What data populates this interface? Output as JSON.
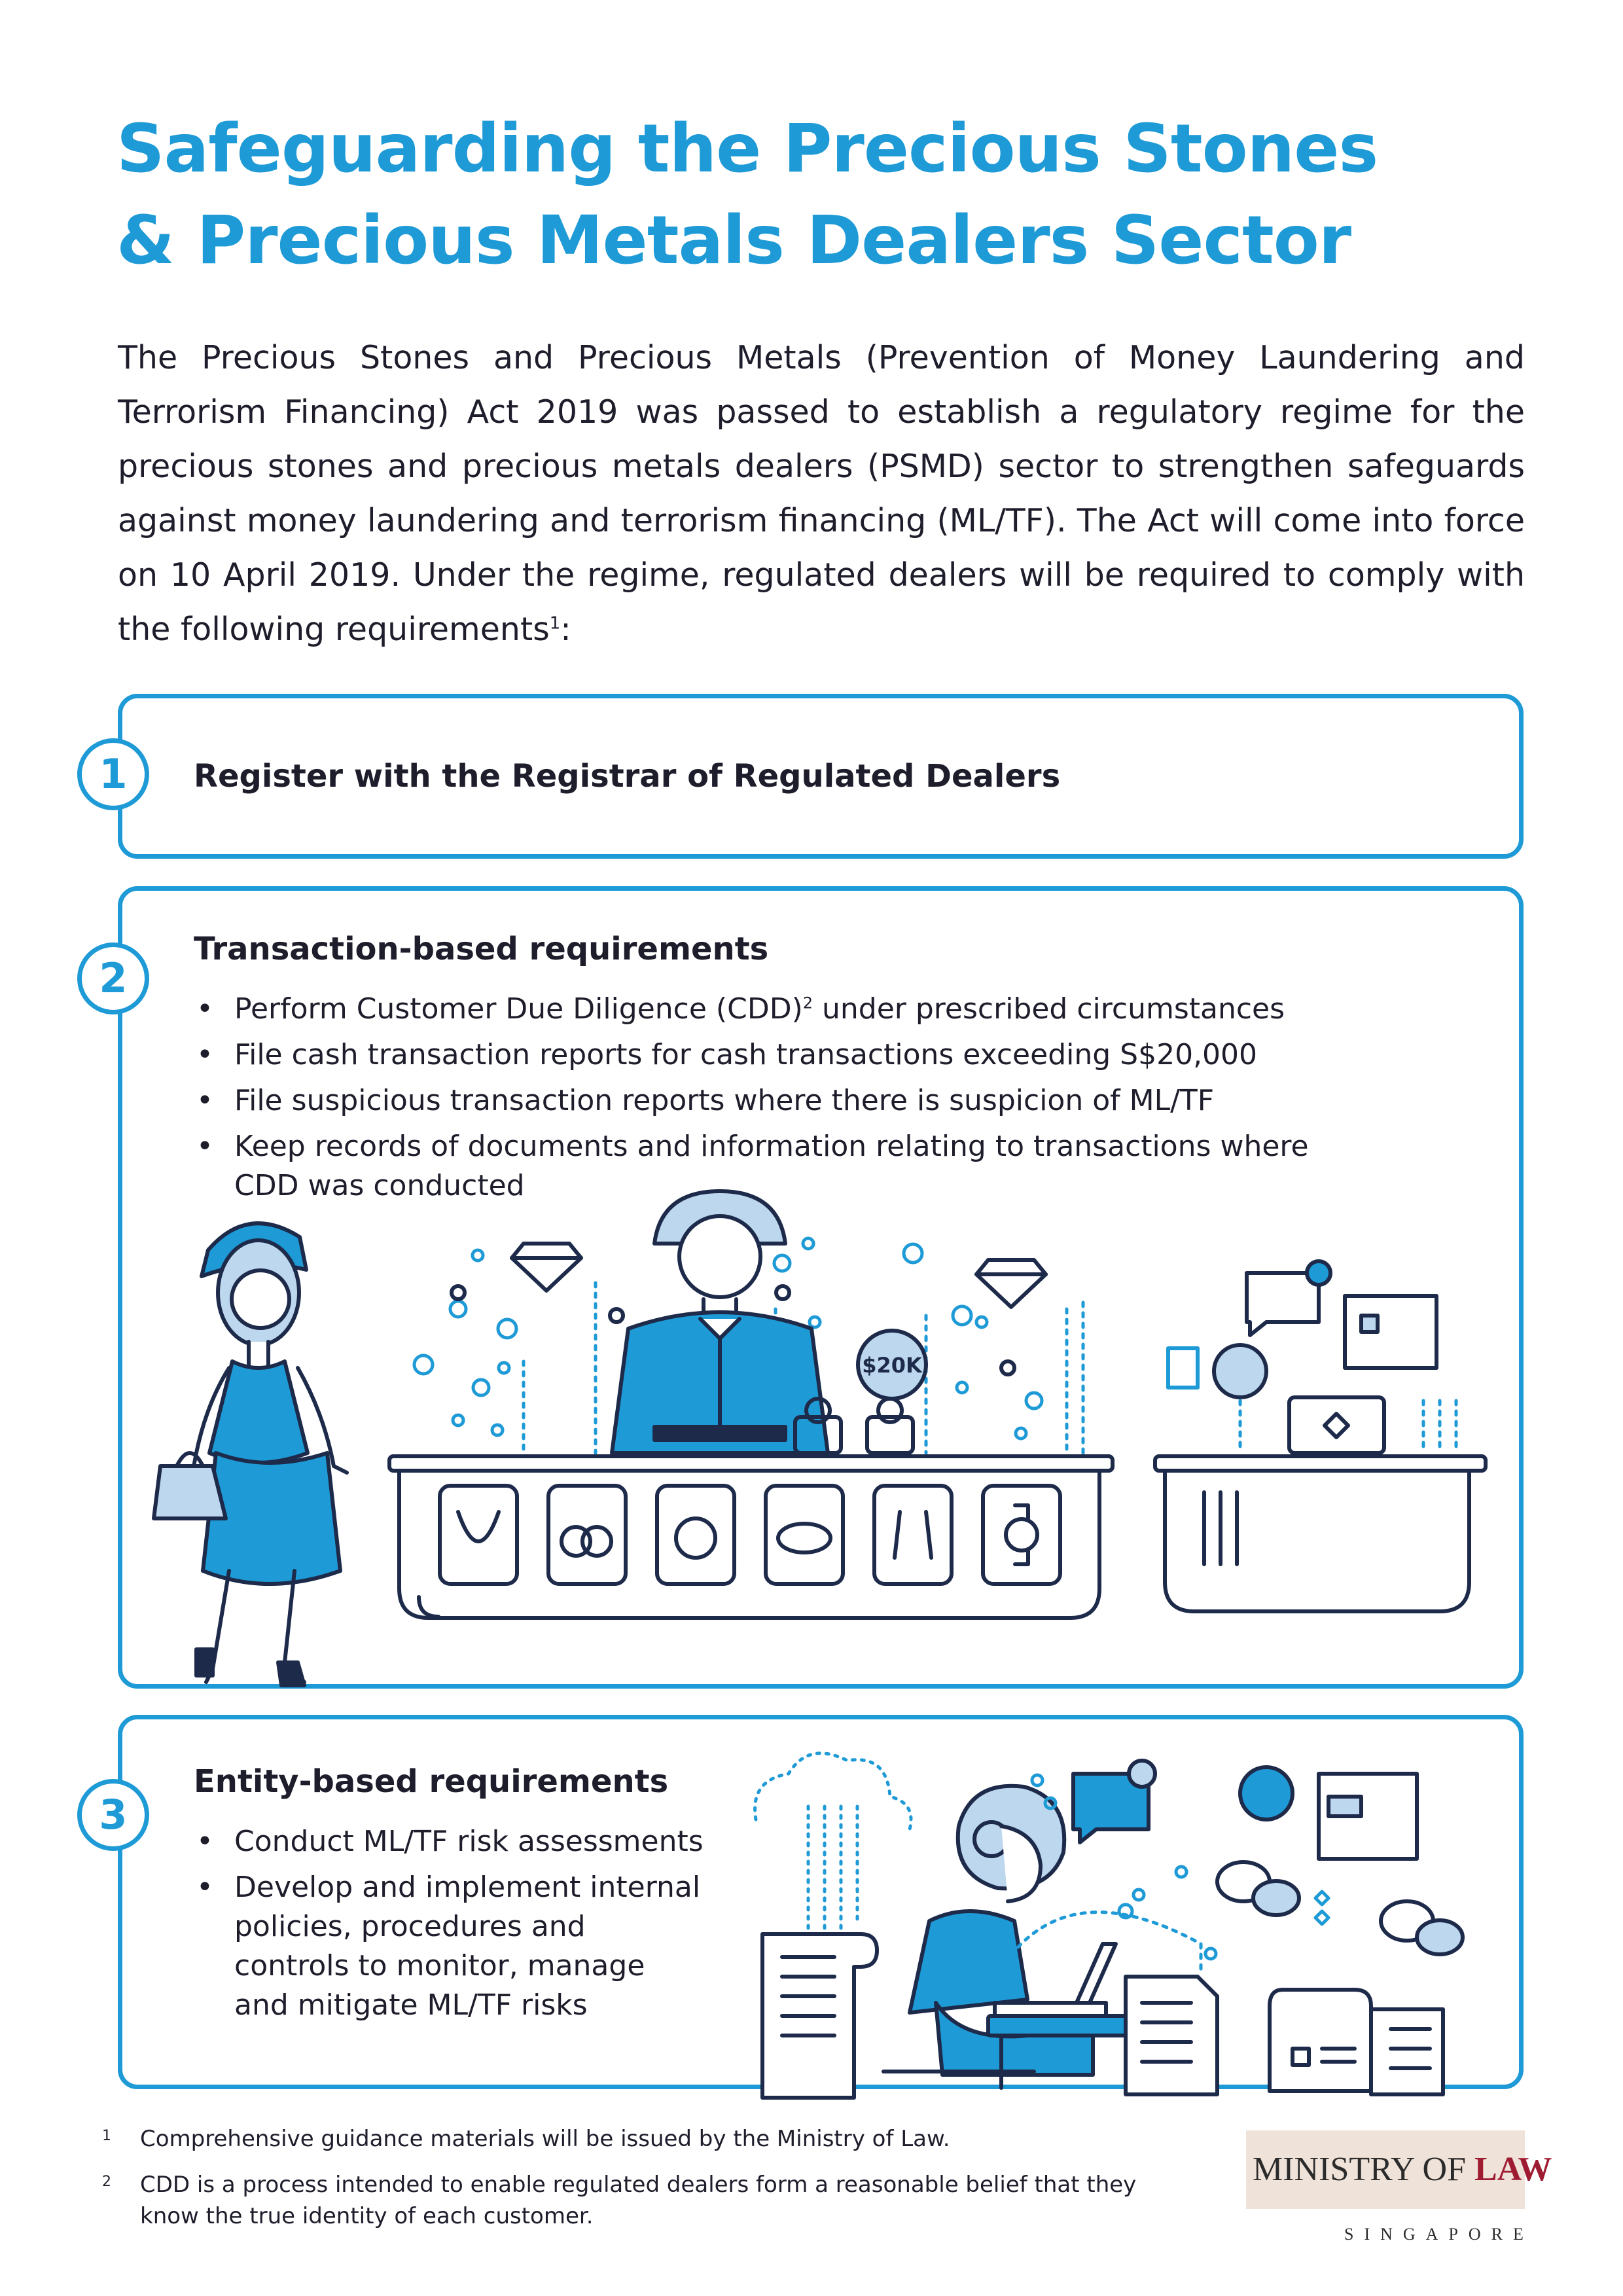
{
  "title": {
    "line1": "Safeguarding the Precious Stones",
    "line2": "& Precious Metals Dealers Sector"
  },
  "intro": {
    "text": "The Precious Stones and Precious Metals (Prevention of Money Laundering and Terrorism Financing) Act 2019 was passed to establish a regulatory regime for the precious stones and precious metals dealers (PSMD) sector to strengthen safeguards against money laundering and terrorism financing (ML/TF). The Act will come into force on 10 April 2019. Under the regime, regulated dealers will be required to comply with the following requirements",
    "footnote_ref": "1",
    "end": ":"
  },
  "sections": [
    {
      "number": "1",
      "heading": "Register with the Registrar of Regulated Dealers"
    },
    {
      "number": "2",
      "heading": "Transaction-based requirements",
      "bullets": [
        {
          "text": "Perform Customer Due Diligence (CDD)",
          "sup": "2",
          "tail": " under prescribed circumstances"
        },
        {
          "text": "File cash transaction reports for cash transactions exceeding S$20,000"
        },
        {
          "text": "File suspicious transaction reports where there is suspicion of ML/TF"
        },
        {
          "text": "Keep records of documents and information relating to transactions where CDD was conducted"
        }
      ],
      "illustration": {
        "price_tag": "$20K"
      }
    },
    {
      "number": "3",
      "heading": "Entity-based requirements",
      "bullets": [
        {
          "text": "Conduct ML/TF risk assessments"
        },
        {
          "text": "Develop and implement internal policies, procedures and controls to monitor, manage and mitigate ML/TF risks"
        }
      ]
    }
  ],
  "footnotes": [
    {
      "num": "1",
      "text": "Comprehensive guidance materials will be issued by the Ministry of Law."
    },
    {
      "num": "2",
      "text": "CDD is a process intended to enable regulated dealers form a reasonable belief that they know the true identity of each customer."
    }
  ],
  "logo": {
    "main": "MINISTRY OF",
    "law": "LAW",
    "sub": "SINGAPORE"
  },
  "colors": {
    "accent": "#1e9ad6",
    "text": "#1d1d2b",
    "logo_bar": "#efe2d8",
    "logo_law": "#9e1b32"
  },
  "icons": [
    "diamond-icon",
    "necklace-icon",
    "rings-icon",
    "bracelet-icon",
    "bangle-icon",
    "earrings-icon",
    "watch-icon",
    "ring-box-icon",
    "laptop-icon",
    "chat-bubble-icon",
    "document-icon",
    "cloud-icon"
  ]
}
